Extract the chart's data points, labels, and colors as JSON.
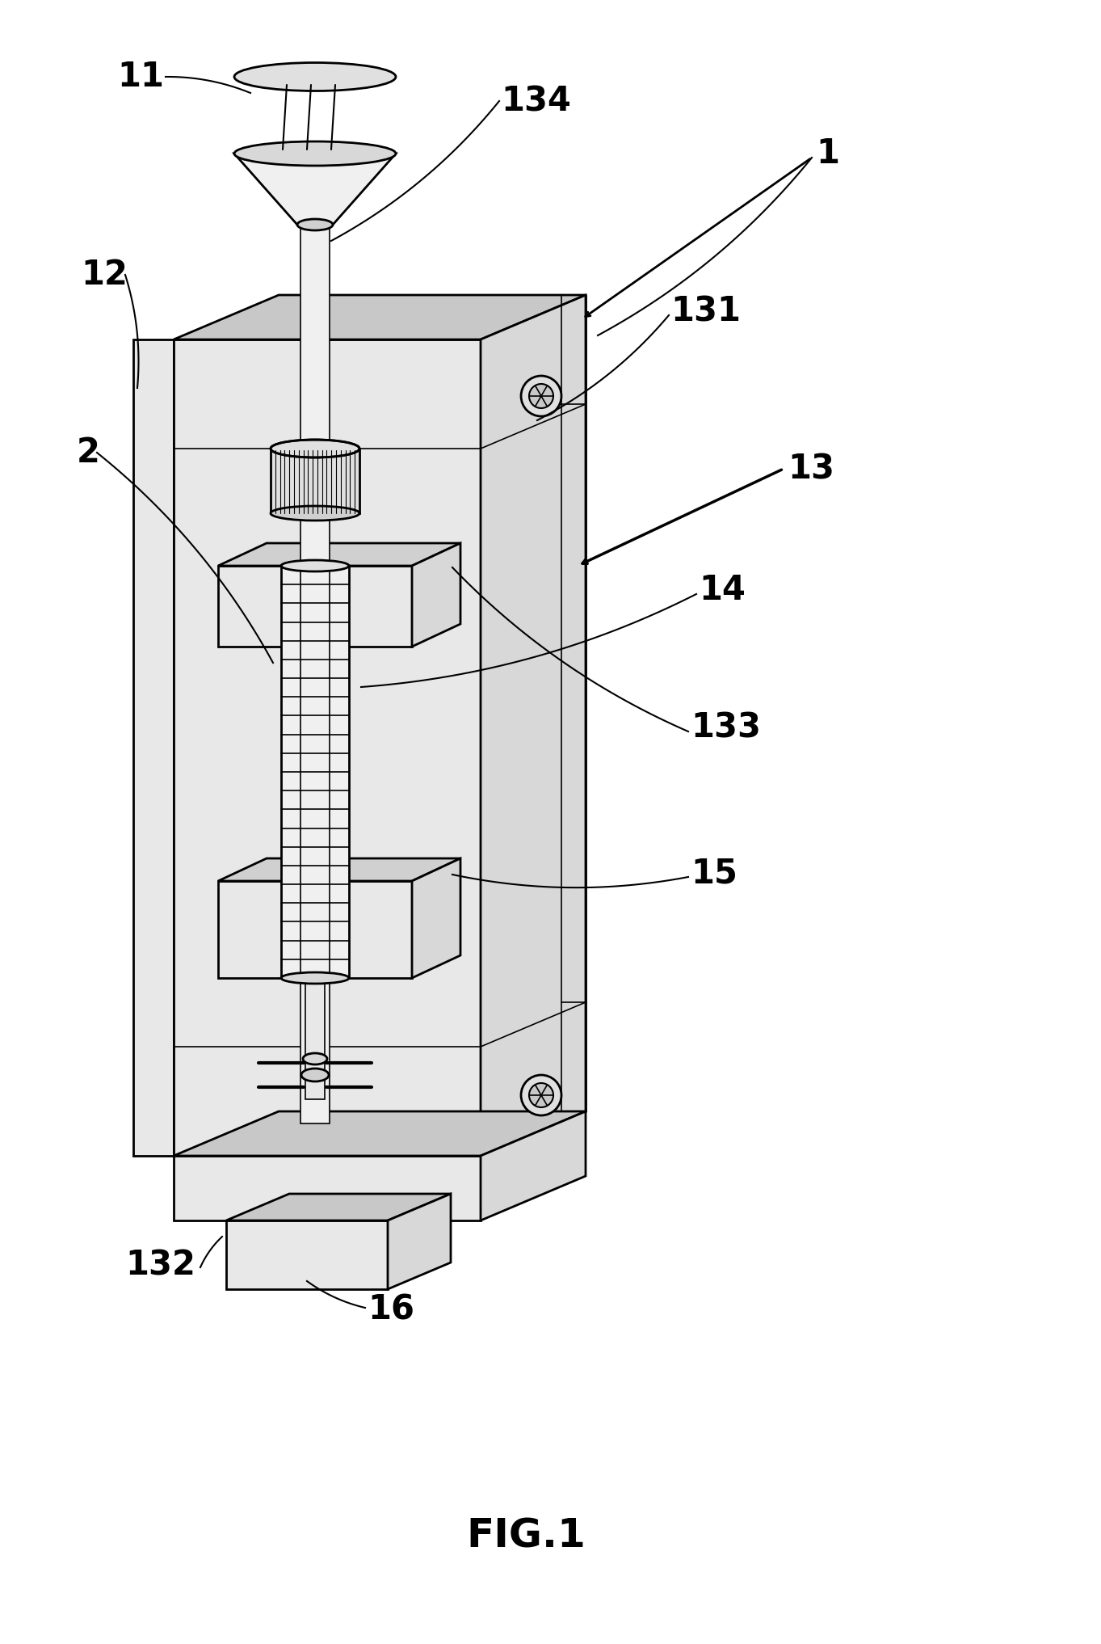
{
  "title": "FIG.1",
  "title_fontsize": 36,
  "bg_color": "#ffffff",
  "lc": "#000000",
  "gray_front": "#e8e8e8",
  "gray_top": "#c8c8c8",
  "gray_right": "#d8d8d8",
  "gray_dark": "#b0b0b0",
  "gray_med": "#d0d0d0",
  "lw_main": 2.0,
  "lw_thin": 1.2,
  "lw_label": 1.5
}
